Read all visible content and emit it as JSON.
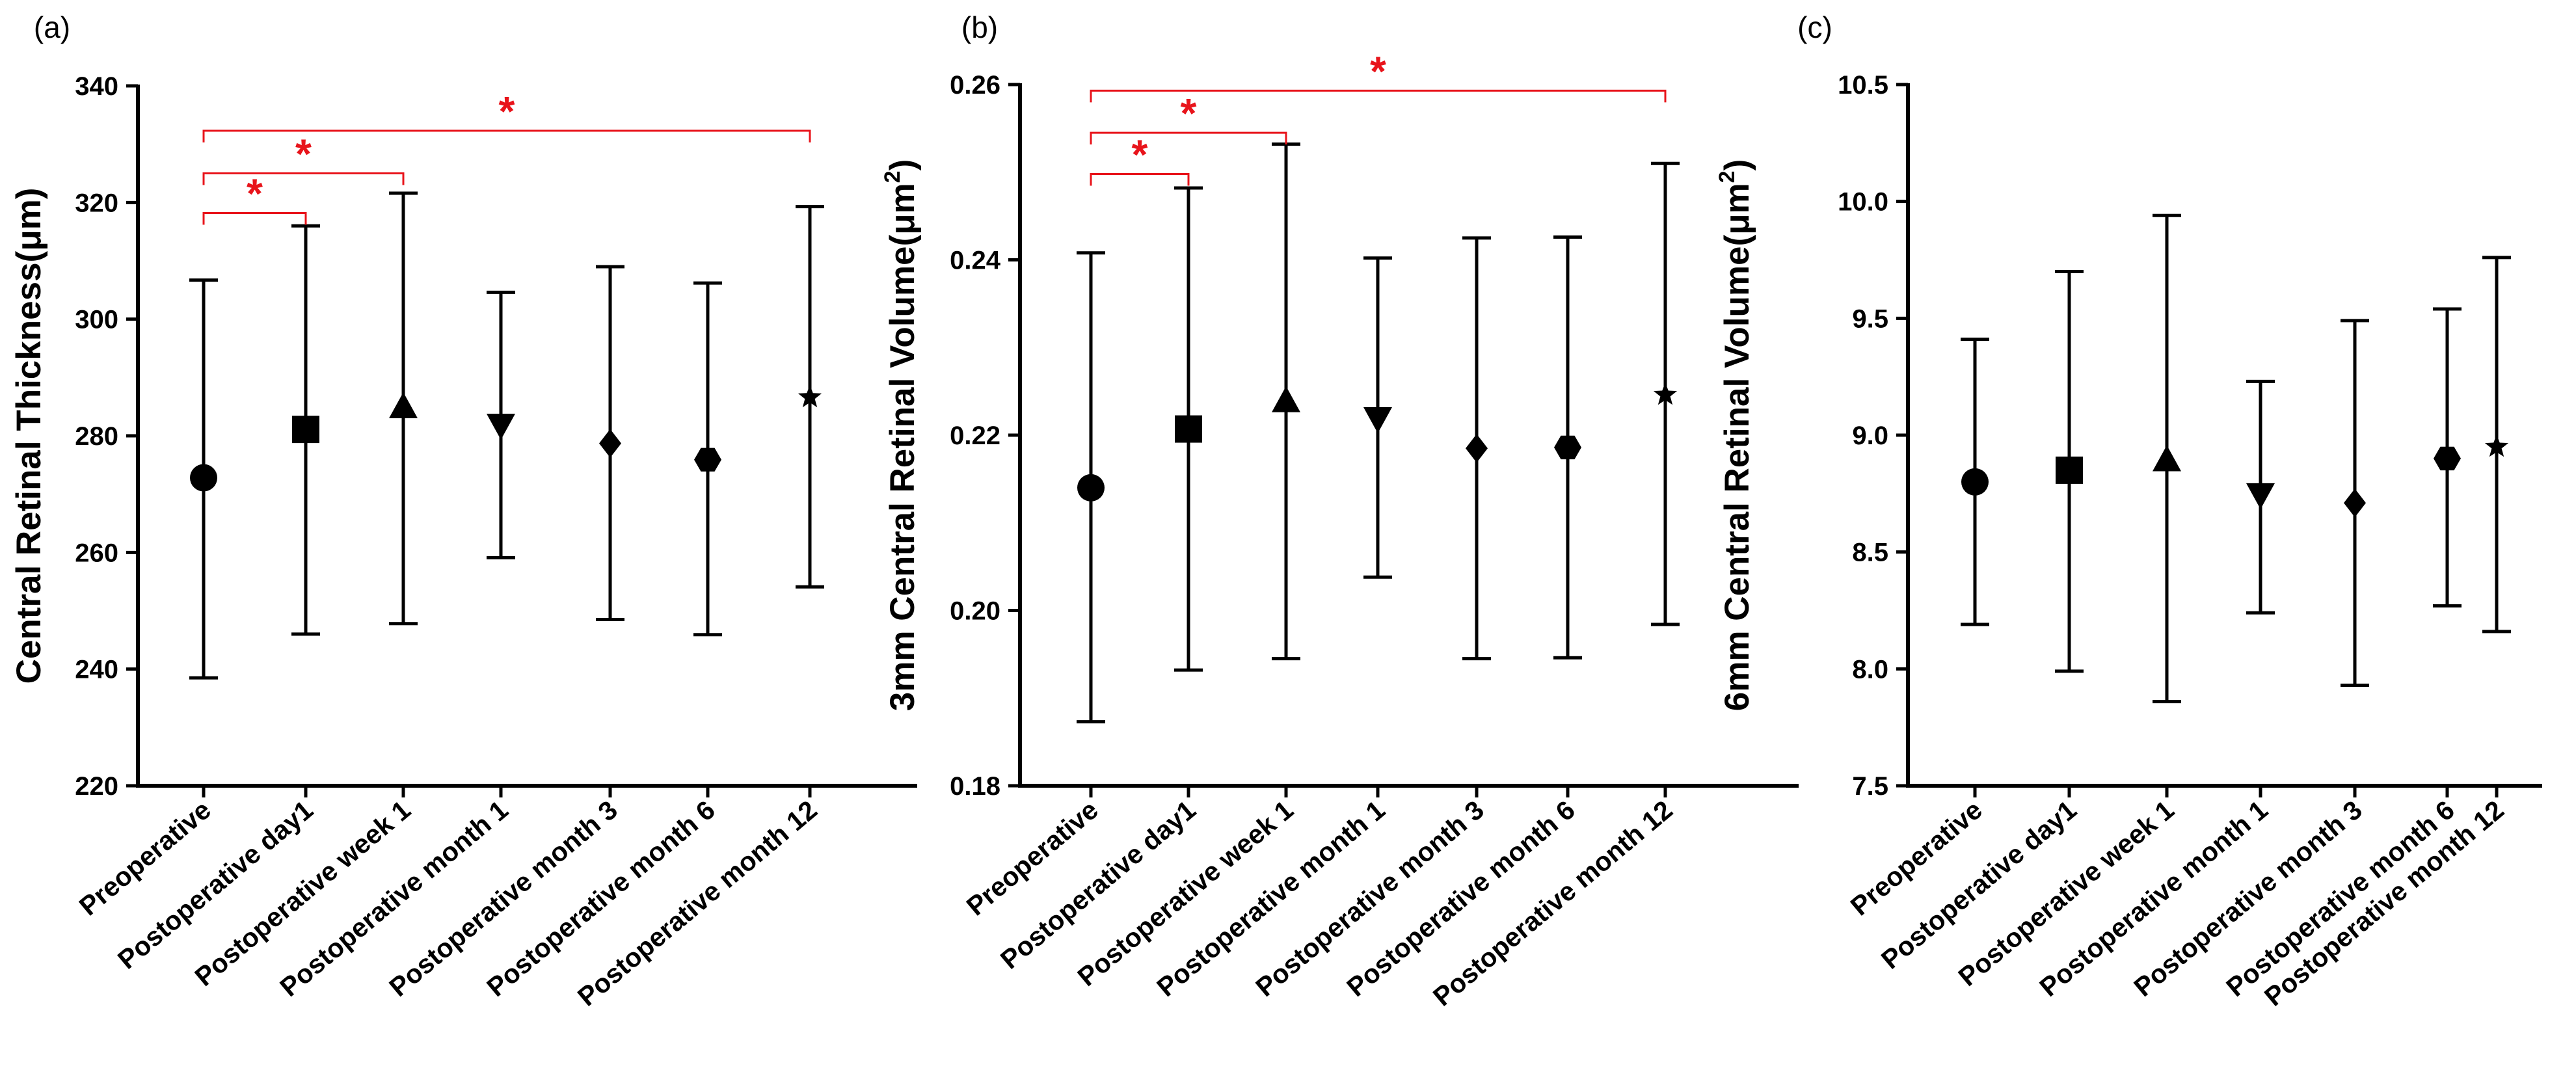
{
  "colors": {
    "axis": "#000000",
    "marker": "#000000",
    "significance": "#e8141b",
    "background": "#ffffff"
  },
  "chart_data": [
    {
      "type": "scatter",
      "panel_label": "(a)",
      "ylabel": "Central Retinal Thickness(μm)",
      "ylabel_sup": "",
      "ylim": [
        220,
        340
      ],
      "ytick_labels": [
        "220",
        "240",
        "260",
        "280",
        "300",
        "320",
        "340"
      ],
      "categories": [
        "Preoperative",
        "Postoperative day1",
        "Postoperative week 1",
        "Postoperative month 1",
        "Postoperative month 3",
        "Postoperative month 6",
        "Postoperative month 12"
      ],
      "markers": [
        "circle-icon",
        "square-icon",
        "triangle-up-icon",
        "triangle-down-icon",
        "diamond-icon",
        "hexagon-icon",
        "star-icon"
      ],
      "mean": [
        272.8,
        281.1,
        284.8,
        282.0,
        278.7,
        275.9,
        286.6
      ],
      "error_low": [
        238.5,
        246.0,
        247.8,
        259.1,
        248.5,
        245.9,
        254.1
      ],
      "error_high": [
        306.7,
        316.0,
        321.6,
        304.6,
        309.0,
        306.2,
        319.3
      ],
      "significance": [
        {
          "from": 0,
          "to": 1,
          "y": 318.2,
          "label": "*"
        },
        {
          "from": 0,
          "to": 2,
          "y": 325.0,
          "label": "*"
        },
        {
          "from": 0,
          "to": 6,
          "y": 332.3,
          "label": "*"
        }
      ]
    },
    {
      "type": "scatter",
      "panel_label": "(b)",
      "ylabel": "3mm Central Retinal Volume(μm",
      "ylabel_sup": "2",
      "ylabel_end": ")",
      "ylim": [
        0.18,
        0.26
      ],
      "ytick_labels": [
        "0.18",
        "0.20",
        "0.22",
        "0.24",
        "0.26"
      ],
      "categories": [
        "Preoperative",
        "Postoperative day1",
        "Postoperative week 1",
        "Postoperative month 1",
        "Postoperative month 3",
        "Postoperative month 6",
        "Postoperative month 12"
      ],
      "markers": [
        "circle-icon",
        "square-icon",
        "triangle-up-icon",
        "triangle-down-icon",
        "diamond-icon",
        "hexagon-icon",
        "star-icon"
      ],
      "mean": [
        0.214,
        0.2207,
        0.2238,
        0.222,
        0.2185,
        0.2186,
        0.2246
      ],
      "error_low": [
        0.1873,
        0.1932,
        0.1945,
        0.2038,
        0.1945,
        0.1946,
        0.1984
      ],
      "error_high": [
        0.2408,
        0.2482,
        0.2532,
        0.2402,
        0.2425,
        0.2426,
        0.251
      ],
      "significance": [
        {
          "from": 0,
          "to": 1,
          "y": 0.2498,
          "label": "*"
        },
        {
          "from": 0,
          "to": 2,
          "y": 0.2545,
          "label": "*"
        },
        {
          "from": 0,
          "to": 6,
          "y": 0.2593,
          "label": "*"
        }
      ]
    },
    {
      "type": "scatter",
      "panel_label": "(c)",
      "ylabel": "6mm Central Retinal Volume(μm",
      "ylabel_sup": "2",
      "ylabel_end": ")",
      "ylim": [
        7.5,
        10.5
      ],
      "ytick_labels": [
        "7.5",
        "8.0",
        "8.5",
        "9.0",
        "9.5",
        "10.0",
        "10.5"
      ],
      "categories": [
        "Preoperative",
        "Postoperative day1",
        "Postoperative week 1",
        "Postoperative month 1",
        "Postoperative month 3",
        "Postoperative month 6",
        "Postoperative month 12"
      ],
      "markers": [
        "circle-icon",
        "square-icon",
        "triangle-up-icon",
        "triangle-down-icon",
        "diamond-icon",
        "hexagon-icon",
        "star-icon"
      ],
      "mean": [
        8.8,
        8.85,
        8.89,
        8.75,
        8.71,
        8.9,
        8.95
      ],
      "error_low": [
        8.19,
        7.99,
        7.86,
        8.24,
        7.93,
        8.27,
        8.16
      ],
      "error_high": [
        9.41,
        9.7,
        9.94,
        9.23,
        9.49,
        9.54,
        9.76
      ],
      "significance": []
    }
  ]
}
